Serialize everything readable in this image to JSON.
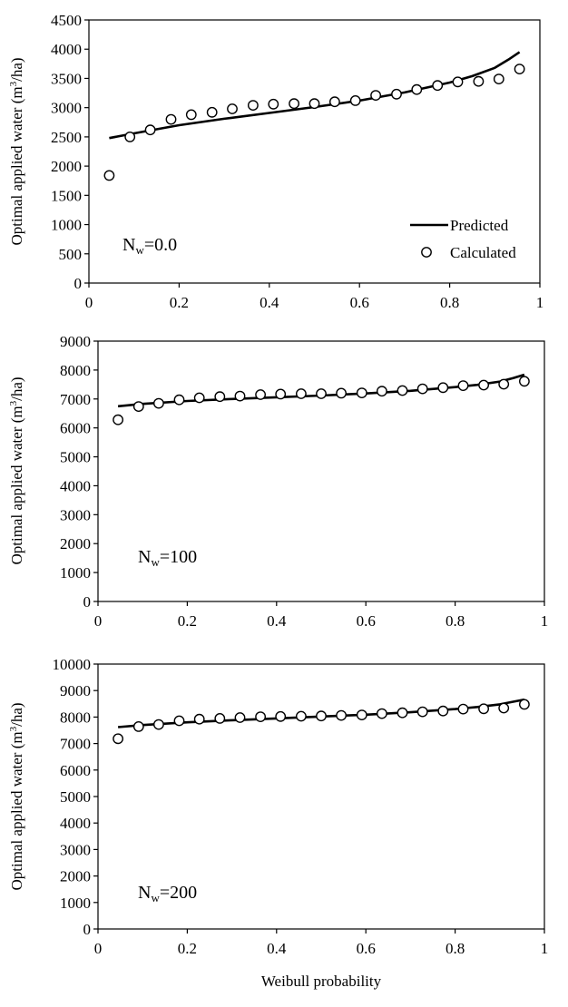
{
  "chart_data": [
    {
      "type": "line",
      "ylabel_parts": [
        "Optimal applied water (m",
        "3",
        "/ha)"
      ],
      "xlim": [
        0,
        1
      ],
      "ylim": [
        0,
        4500
      ],
      "yticks": [
        "0",
        "500",
        "1000",
        "1500",
        "2000",
        "2500",
        "3000",
        "3500",
        "4000",
        "4500"
      ],
      "xticks": [
        "0",
        "0.2",
        "0.4",
        "0.6",
        "0.8",
        "1"
      ],
      "xlabel": "",
      "grid": false,
      "annotation_parts": [
        "N",
        "w",
        "=0.0"
      ],
      "legend": {
        "position": "bottom-right",
        "entries": [
          "Predicted",
          "Calculated"
        ]
      },
      "series": [
        {
          "name": "Predicted",
          "kind": "line",
          "x": [
            0.045,
            0.1,
            0.2,
            0.3,
            0.4,
            0.5,
            0.6,
            0.7,
            0.8,
            0.85,
            0.9,
            0.93,
            0.955
          ],
          "y": [
            2480,
            2560,
            2700,
            2810,
            2910,
            3010,
            3120,
            3260,
            3430,
            3540,
            3680,
            3820,
            3950
          ]
        },
        {
          "name": "Calculated",
          "kind": "scatter",
          "x": [
            0.045,
            0.091,
            0.136,
            0.182,
            0.227,
            0.273,
            0.318,
            0.364,
            0.409,
            0.455,
            0.5,
            0.545,
            0.591,
            0.636,
            0.682,
            0.727,
            0.773,
            0.818,
            0.864,
            0.909,
            0.955
          ],
          "y": [
            1840,
            2500,
            2620,
            2800,
            2880,
            2920,
            2980,
            3040,
            3060,
            3070,
            3070,
            3100,
            3120,
            3210,
            3230,
            3310,
            3380,
            3440,
            3450,
            3490,
            3660
          ]
        }
      ]
    },
    {
      "type": "line",
      "ylabel_parts": [
        "Optimal applied water (m",
        "3",
        "/ha)"
      ],
      "xlim": [
        0,
        1
      ],
      "ylim": [
        0,
        9000
      ],
      "yticks": [
        "0",
        "1000",
        "2000",
        "3000",
        "4000",
        "5000",
        "6000",
        "7000",
        "8000",
        "9000"
      ],
      "xticks": [
        "0",
        "0.2",
        "0.4",
        "0.6",
        "0.8",
        "1"
      ],
      "xlabel": "",
      "grid": false,
      "annotation_parts": [
        "N",
        "w",
        "=100"
      ],
      "series": [
        {
          "name": "Predicted",
          "kind": "line",
          "x": [
            0.045,
            0.1,
            0.2,
            0.3,
            0.4,
            0.5,
            0.6,
            0.7,
            0.8,
            0.85,
            0.9,
            0.93,
            0.955
          ],
          "y": [
            6750,
            6830,
            6930,
            7000,
            7060,
            7120,
            7190,
            7280,
            7410,
            7490,
            7600,
            7720,
            7840
          ]
        },
        {
          "name": "Calculated",
          "kind": "scatter",
          "x": [
            0.045,
            0.091,
            0.136,
            0.182,
            0.227,
            0.273,
            0.318,
            0.364,
            0.409,
            0.455,
            0.5,
            0.545,
            0.591,
            0.636,
            0.682,
            0.727,
            0.773,
            0.818,
            0.864,
            0.909,
            0.955
          ],
          "y": [
            6280,
            6740,
            6850,
            6970,
            7040,
            7080,
            7100,
            7150,
            7170,
            7180,
            7180,
            7200,
            7210,
            7270,
            7290,
            7350,
            7390,
            7460,
            7480,
            7510,
            7610
          ]
        }
      ]
    },
    {
      "type": "line",
      "ylabel_parts": [
        "Optimal applied water (m",
        "3",
        "/ha)"
      ],
      "xlim": [
        0,
        1
      ],
      "ylim": [
        0,
        10000
      ],
      "yticks": [
        "0",
        "1000",
        "2000",
        "3000",
        "4000",
        "5000",
        "6000",
        "7000",
        "8000",
        "9000",
        "10000"
      ],
      "xticks": [
        "0",
        "0.2",
        "0.4",
        "0.6",
        "0.8",
        "1"
      ],
      "xlabel": "Weibull probability",
      "grid": false,
      "annotation_parts": [
        "N",
        "w",
        "=200"
      ],
      "series": [
        {
          "name": "Predicted",
          "kind": "line",
          "x": [
            0.045,
            0.1,
            0.2,
            0.3,
            0.4,
            0.5,
            0.6,
            0.7,
            0.8,
            0.85,
            0.9,
            0.93,
            0.955
          ],
          "y": [
            7620,
            7700,
            7800,
            7880,
            7950,
            8020,
            8090,
            8180,
            8300,
            8380,
            8480,
            8580,
            8660
          ]
        },
        {
          "name": "Calculated",
          "kind": "scatter",
          "x": [
            0.045,
            0.091,
            0.136,
            0.182,
            0.227,
            0.273,
            0.318,
            0.364,
            0.409,
            0.455,
            0.5,
            0.545,
            0.591,
            0.636,
            0.682,
            0.727,
            0.773,
            0.818,
            0.864,
            0.909,
            0.955
          ],
          "y": [
            7180,
            7640,
            7720,
            7860,
            7920,
            7950,
            7980,
            8010,
            8020,
            8030,
            8040,
            8060,
            8080,
            8130,
            8160,
            8200,
            8230,
            8300,
            8310,
            8340,
            8480
          ]
        }
      ]
    }
  ]
}
